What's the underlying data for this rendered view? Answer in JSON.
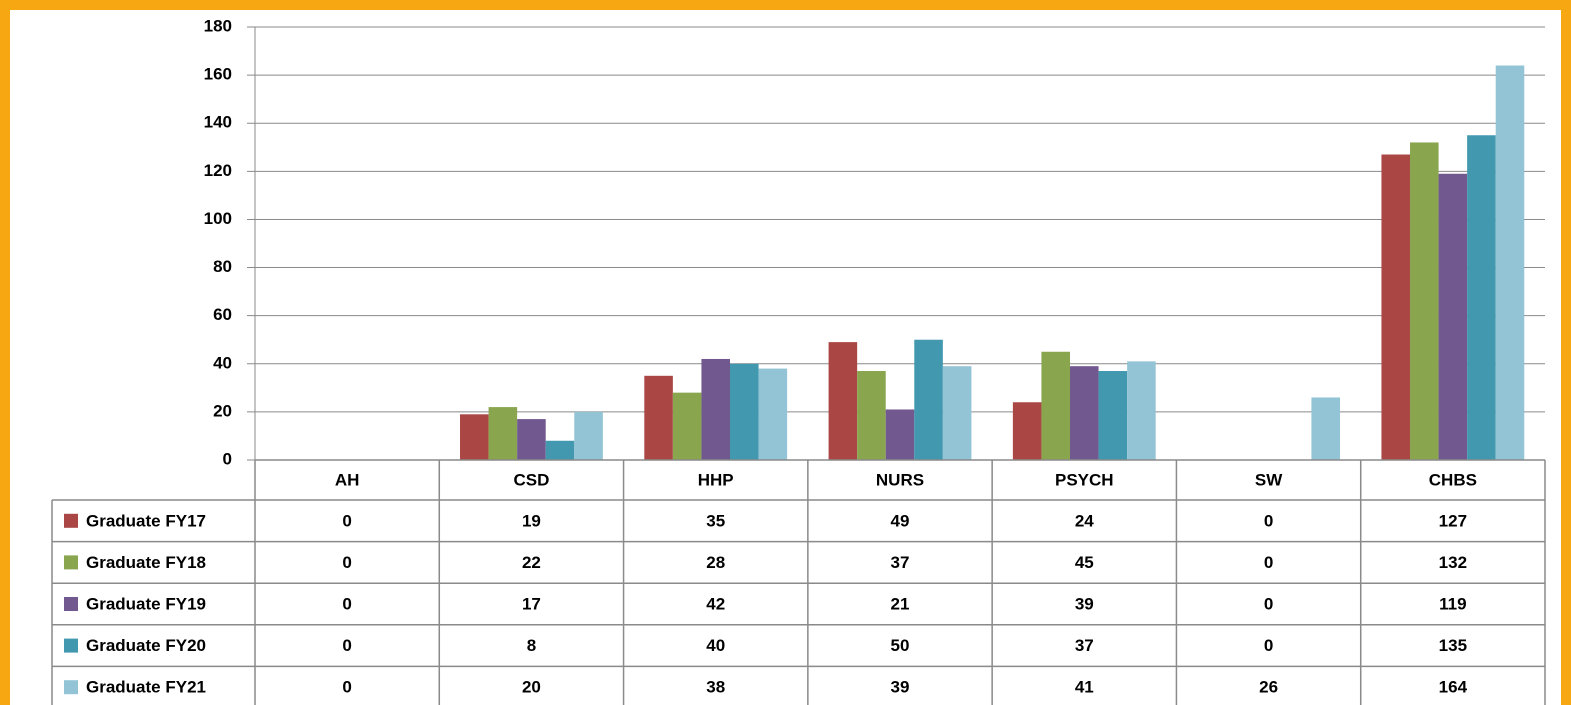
{
  "chart_data": {
    "type": "bar",
    "categories": [
      "AH",
      "CSD",
      "HHP",
      "NURS",
      "PSYCH",
      "SW",
      "CHBS"
    ],
    "series": [
      {
        "name": "Graduate FY17",
        "color": "#aa4643",
        "values": [
          0,
          19,
          35,
          49,
          24,
          0,
          127
        ]
      },
      {
        "name": "Graduate FY18",
        "color": "#89a54e",
        "values": [
          0,
          22,
          28,
          37,
          45,
          0,
          132
        ]
      },
      {
        "name": "Graduate FY19",
        "color": "#71588f",
        "values": [
          0,
          17,
          42,
          21,
          39,
          0,
          119
        ]
      },
      {
        "name": "Graduate FY20",
        "color": "#4198af",
        "values": [
          0,
          8,
          40,
          50,
          37,
          0,
          135
        ]
      },
      {
        "name": "Graduate FY21",
        "color": "#93c4d6",
        "values": [
          0,
          20,
          38,
          39,
          41,
          26,
          164
        ]
      }
    ],
    "ylim": [
      0,
      180
    ],
    "yticks": [
      0,
      20,
      40,
      60,
      80,
      100,
      120,
      140,
      160,
      180
    ],
    "grid": true
  }
}
